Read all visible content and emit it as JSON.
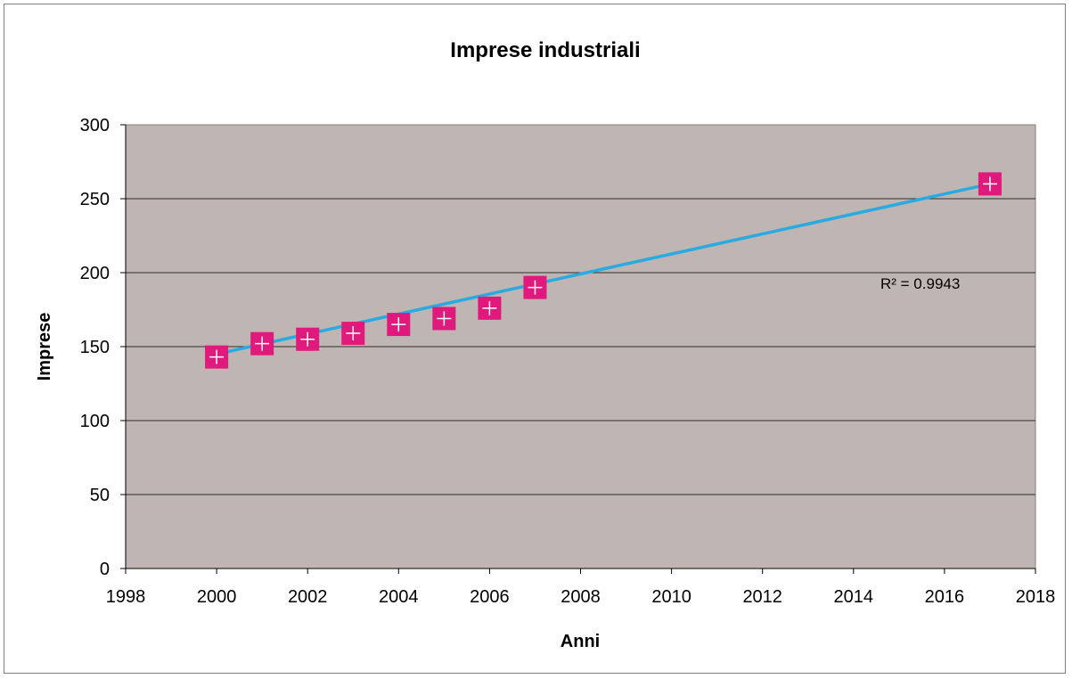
{
  "chart_data": {
    "type": "scatter",
    "title": "Imprese industriali",
    "xlabel": "Anni",
    "ylabel": "Imprese",
    "xlim": [
      1998,
      2018
    ],
    "ylim": [
      0,
      300
    ],
    "xticks": [
      1998,
      2000,
      2002,
      2004,
      2006,
      2008,
      2010,
      2012,
      2014,
      2016,
      2018
    ],
    "yticks": [
      0,
      50,
      100,
      150,
      200,
      250,
      300
    ],
    "grid": true,
    "legend": "none",
    "series": [
      {
        "x": [
          2000,
          2001,
          2002,
          2003,
          2004,
          2005,
          2006,
          2007,
          2017
        ],
        "y": [
          143,
          152,
          155,
          159,
          165,
          169,
          176,
          190,
          260
        ],
        "marker_color": "#e0197d"
      }
    ],
    "trendline": {
      "type": "linear",
      "x": [
        2000,
        2017
      ],
      "y": [
        145,
        260
      ],
      "color": "#29abe2",
      "r_squared_label": "R² = 0.9943"
    },
    "plot_background": "#bfb5b2"
  }
}
